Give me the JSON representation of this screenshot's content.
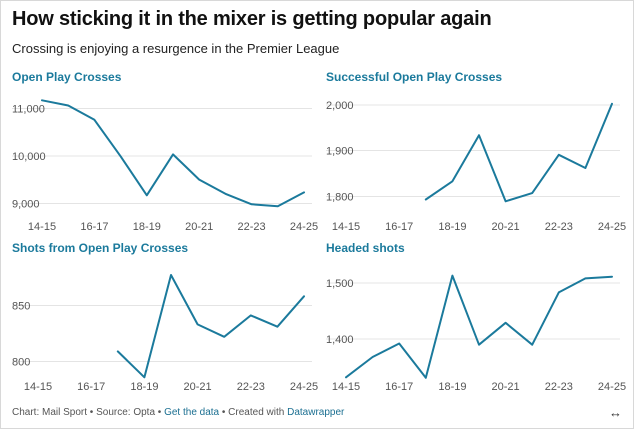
{
  "title": "How sticking it in the mixer is getting popular again",
  "subtitle": "Crossing is enjoying a resurgence in the Premier League",
  "footer": {
    "source": "Chart: Mail Sport • Source: Opta •",
    "get_data": "Get the data",
    "sep": "• Created with",
    "datawrapper": "Datawrapper",
    "expand_icon": "↔"
  },
  "colors": {
    "line": "#1b7a9c",
    "title": "#1b7a9c"
  },
  "chart_data": [
    {
      "type": "line",
      "title": "Open Play Crosses",
      "x": [
        "14-15",
        "15-16",
        "16-17",
        "17-18",
        "18-19",
        "19-20",
        "20-21",
        "21-22",
        "22-23",
        "23-24",
        "24-25"
      ],
      "x_tick_labels": [
        "14-15",
        "16-17",
        "18-19",
        "20-21",
        "22-23",
        "24-25"
      ],
      "values": [
        11170,
        11060,
        10760,
        9990,
        9170,
        10030,
        9500,
        9200,
        8980,
        8940,
        9230
      ],
      "ylim": [
        8860,
        11260
      ],
      "yticks": [
        9000,
        10000,
        11000
      ],
      "ytick_labels": [
        "9,000",
        "10,000",
        "11,000"
      ]
    },
    {
      "type": "line",
      "title": "Successful Open Play Crosses",
      "x": [
        "14-15",
        "15-16",
        "16-17",
        "17-18",
        "18-19",
        "19-20",
        "20-21",
        "21-22",
        "22-23",
        "23-24",
        "24-25"
      ],
      "x_tick_labels": [
        "14-15",
        "16-17",
        "18-19",
        "20-21",
        "22-23",
        "24-25"
      ],
      "values": [
        null,
        null,
        null,
        1793,
        1833,
        1934,
        1789,
        1807,
        1891,
        1862,
        2003
      ],
      "ylim": [
        1770,
        2020
      ],
      "yticks": [
        1800,
        1900,
        2000
      ],
      "ytick_labels": [
        "1,800",
        "1,900",
        "2,000"
      ]
    },
    {
      "type": "line",
      "title": "Shots from Open Play Crosses",
      "x": [
        "14-15",
        "15-16",
        "16-17",
        "17-18",
        "18-19",
        "19-20",
        "20-21",
        "21-22",
        "22-23",
        "23-24",
        "24-25"
      ],
      "x_tick_labels": [
        "14-15",
        "16-17",
        "18-19",
        "20-21",
        "22-23",
        "24-25"
      ],
      "values": [
        null,
        null,
        null,
        809,
        786,
        877,
        833,
        822,
        841,
        831,
        858
      ],
      "ylim": [
        780,
        885
      ],
      "yticks": [
        800,
        850
      ],
      "ytick_labels": [
        "800",
        "850"
      ]
    },
    {
      "type": "line",
      "title": "Headed shots",
      "x": [
        "14-15",
        "15-16",
        "16-17",
        "17-18",
        "18-19",
        "19-20",
        "20-21",
        "21-22",
        "22-23",
        "23-24",
        "24-25"
      ],
      "x_tick_labels": [
        "14-15",
        "16-17",
        "18-19",
        "20-21",
        "22-23",
        "24-25"
      ],
      "values": [
        1332,
        1368,
        1392,
        1331,
        1513,
        1390,
        1429,
        1390,
        1483,
        1508,
        1511
      ],
      "ylim": [
        1320,
        1530
      ],
      "yticks": [
        1400,
        1500
      ],
      "ytick_labels": [
        "1,400",
        "1,500"
      ]
    }
  ]
}
